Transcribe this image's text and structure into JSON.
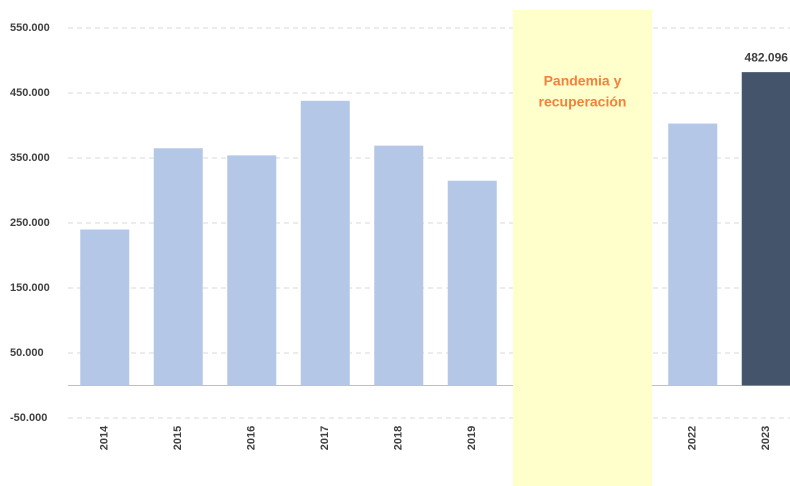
{
  "chart_data": {
    "type": "bar",
    "categories": [
      "2014",
      "2015",
      "2016",
      "2017",
      "2018",
      "2019",
      null,
      null,
      "2022",
      "2023"
    ],
    "values": [
      240000,
      365000,
      354000,
      438000,
      369000,
      315000,
      null,
      null,
      403000,
      482096
    ],
    "value_labels": [
      null,
      null,
      null,
      null,
      null,
      null,
      null,
      null,
      null,
      "482.096"
    ],
    "colors": [
      "#b4c7e7",
      "#b4c7e7",
      "#b4c7e7",
      "#b4c7e7",
      "#b4c7e7",
      "#b4c7e7",
      null,
      null,
      "#b4c7e7",
      "#44546a"
    ],
    "ylim": [
      -50000,
      550000
    ],
    "yticks": [
      {
        "value": -50000,
        "label": "-50.000"
      },
      {
        "value": 50000,
        "label": "50.000"
      },
      {
        "value": 150000,
        "label": "150.000"
      },
      {
        "value": 250000,
        "label": "250.000"
      },
      {
        "value": 350000,
        "label": "350.000"
      },
      {
        "value": 450000,
        "label": "450.000"
      },
      {
        "value": 550000,
        "label": "550.000"
      }
    ],
    "grid": true,
    "annotation": {
      "text": [
        "Pandemia y",
        "recuperación"
      ],
      "color": "#f4813b",
      "background": "#ffffcc"
    }
  }
}
